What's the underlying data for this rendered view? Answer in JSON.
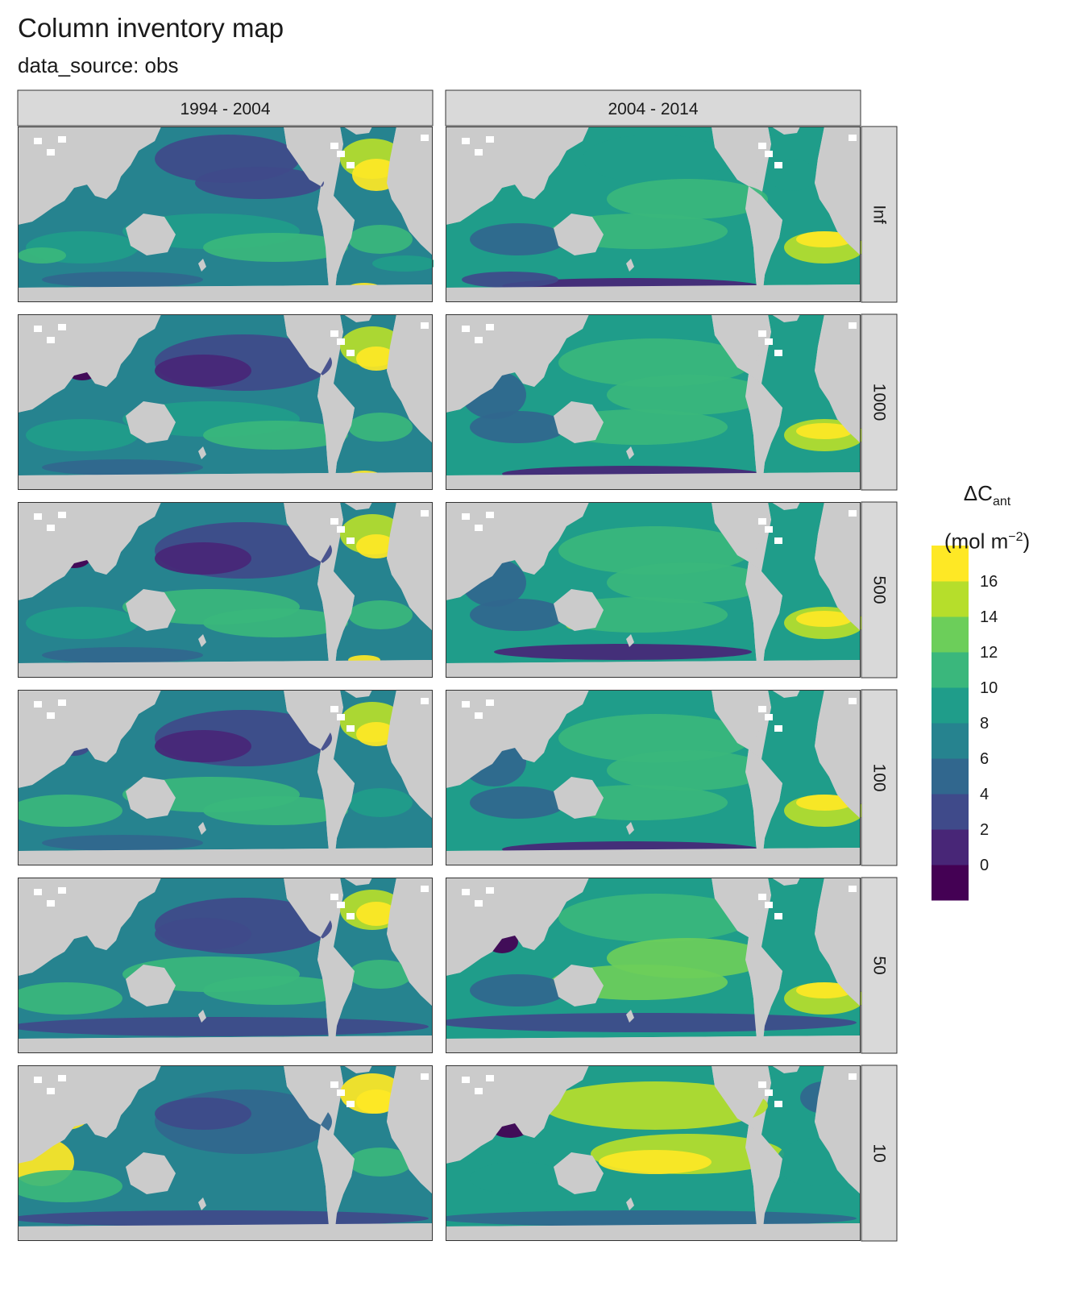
{
  "title": "Column inventory map",
  "subtitle": "data_source: obs",
  "chart_data": {
    "type": "heatmap",
    "title": "Column inventory map",
    "subtitle": "data_source: obs",
    "facet_columns": [
      "1994 - 2004",
      "2004 - 2014"
    ],
    "facet_rows": [
      "Inf",
      "1000",
      "500",
      "100",
      "50",
      "10"
    ],
    "legend": {
      "title_main": "ΔC",
      "title_sub": "ant",
      "units_open": "(mol m",
      "units_sup": "−2",
      "units_close": ")",
      "placement": "right",
      "breaks": [
        -2,
        0,
        2,
        4,
        6,
        8,
        10,
        12,
        14,
        16,
        18
      ],
      "tick_labels": [
        "0",
        "2",
        "4",
        "6",
        "8",
        "10",
        "12",
        "14",
        "16"
      ],
      "colors": [
        "#440154",
        "#482677",
        "#3f4a8a",
        "#31678e",
        "#26838f",
        "#1f9d8a",
        "#3ab77c",
        "#6cce5a",
        "#b6de2b",
        "#fee825"
      ]
    },
    "panel_colors": {
      "background": "#ffffff",
      "land": "#cbcbcb",
      "strip": "#d9d9d9"
    }
  }
}
